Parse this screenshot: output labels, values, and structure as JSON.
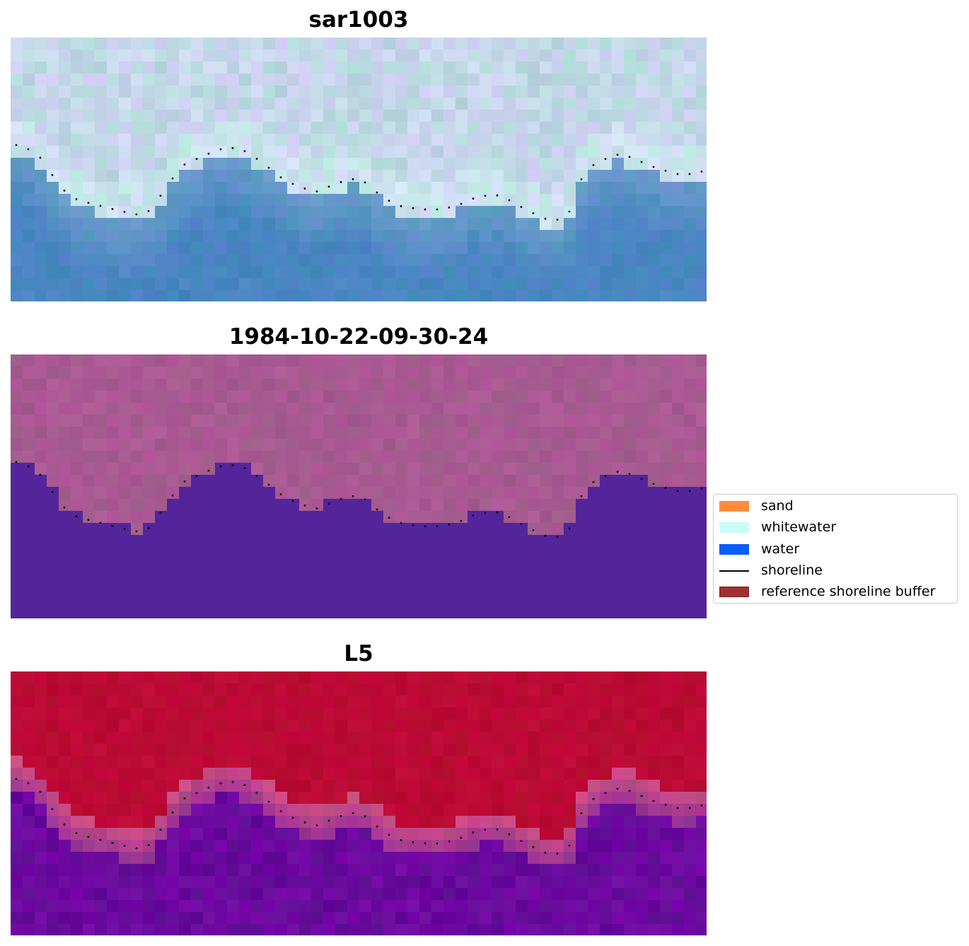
{
  "panels": [
    {
      "title": "sar1003",
      "style": "rgb"
    },
    {
      "title": "1984-10-22-09-30-24",
      "style": "classified"
    },
    {
      "title": "L5",
      "style": "index"
    }
  ],
  "legend": {
    "items": [
      {
        "label": "sand",
        "color": "#ff8c3a",
        "kind": "patch"
      },
      {
        "label": "whitewater",
        "color": "#c8fcfa",
        "kind": "patch"
      },
      {
        "label": "water",
        "color": "#0b5cff",
        "kind": "patch"
      },
      {
        "label": "shoreline",
        "color": "#000000",
        "kind": "line"
      },
      {
        "label": "reference shoreline buffer",
        "color": "#a03030",
        "kind": "patch"
      }
    ]
  },
  "colors": {
    "rgb_water": "#4a86c2",
    "rgb_whitewater": "#d8ecf2",
    "classified_land": "#a85a92",
    "classified_water": "#54259a",
    "index_land": "#bb0a34",
    "index_water": "#6a0a9e"
  }
}
